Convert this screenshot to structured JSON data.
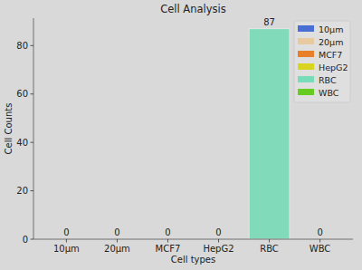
{
  "chart_data": {
    "type": "bar",
    "title": "Cell Analysis",
    "x_label": "Cell types",
    "y_label": "Cell Counts",
    "categories": [
      "10µm",
      "20µm",
      "MCF7",
      "HepG2",
      "RBC",
      "WBC"
    ],
    "values": [
      0,
      0,
      0,
      0,
      87,
      0
    ],
    "colors": [
      "#4a6fd4",
      "#e8c9a0",
      "#e8802a",
      "#d8d420",
      "#78dcb8",
      "#66cc22"
    ],
    "ylim": [
      0,
      91.35
    ],
    "yticks": [
      0,
      20,
      40,
      60,
      80
    ],
    "grid": false,
    "legend": "upper right",
    "data_labels": true
  }
}
